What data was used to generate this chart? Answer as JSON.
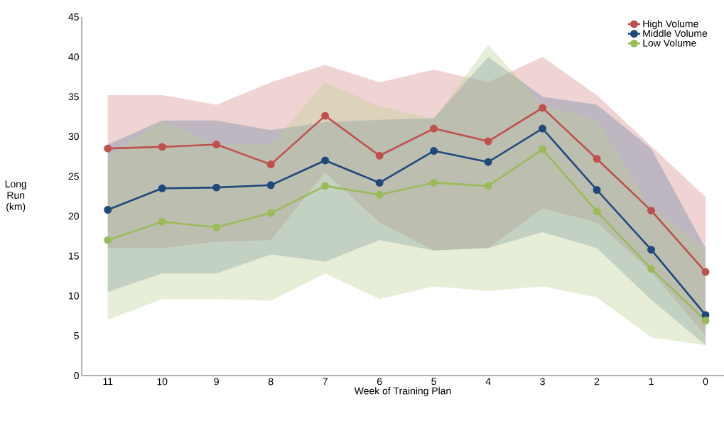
{
  "chart_data": {
    "type": "line",
    "xlabel": "Week of Training Plan",
    "ylabel": "Long Run (km)",
    "categories": [
      "11",
      "10",
      "9",
      "8",
      "7",
      "6",
      "5",
      "4",
      "3",
      "2",
      "1",
      "0"
    ],
    "ylim": [
      0,
      45
    ],
    "yticks": [
      0,
      5,
      10,
      15,
      20,
      25,
      30,
      35,
      40,
      45
    ],
    "grid": false,
    "legend": "top right",
    "marker": "circle",
    "line_style": "solid",
    "series": [
      {
        "name": "High Volume",
        "color": "#c0504d",
        "values": [
          28.5,
          28.7,
          29,
          26.5,
          32.6,
          27.6,
          31,
          29.4,
          33.6,
          27.2,
          20.7,
          13
        ],
        "lower": [
          16,
          16,
          16.8,
          17,
          25.5,
          19.2,
          15.7,
          16,
          21,
          19.2,
          13,
          5
        ],
        "upper": [
          35.2,
          35.2,
          34,
          36.8,
          39,
          36.8,
          38.4,
          36.8,
          40,
          35.2,
          28.8,
          22.4
        ]
      },
      {
        "name": "Middle Volume",
        "color": "#1f497d",
        "values": [
          20.8,
          23.5,
          23.6,
          23.9,
          27,
          24.2,
          28.2,
          26.8,
          31,
          23.3,
          15.8,
          7.6
        ],
        "lower": [
          10.5,
          12.8,
          12.8,
          15.2,
          14.3,
          17,
          15.7,
          16,
          18,
          16,
          9.5,
          3.8
        ],
        "upper": [
          29,
          32,
          32,
          30.8,
          31.8,
          32.1,
          32.3,
          40,
          35,
          34,
          28.5,
          16
        ]
      },
      {
        "name": "Low Volume",
        "color": "#9bbb59",
        "values": [
          17,
          19.3,
          18.6,
          20.4,
          23.8,
          22.7,
          24.2,
          23.8,
          28.4,
          20.6,
          13.4,
          6.9
        ],
        "lower": [
          7,
          9.6,
          9.6,
          9.4,
          12.8,
          9.6,
          11.2,
          10.6,
          11.2,
          9.8,
          4.8,
          3.8
        ],
        "upper": [
          27.5,
          32,
          29,
          29,
          36.8,
          33.8,
          32.2,
          41.5,
          34,
          32,
          21,
          16
        ]
      }
    ]
  }
}
